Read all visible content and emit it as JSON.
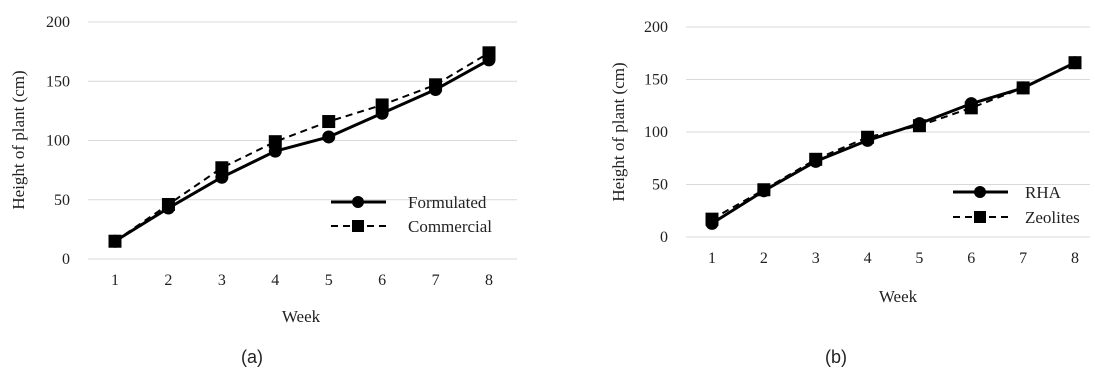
{
  "chart_data": [
    {
      "type": "line",
      "caption": "(a)",
      "xlabel": "Week",
      "ylabel": "Height of plant (cm)",
      "x": [
        1,
        2,
        3,
        4,
        5,
        6,
        7,
        8
      ],
      "xticks": [
        "1",
        "2",
        "3",
        "4",
        "5",
        "6",
        "7",
        "8"
      ],
      "ylim": [
        0,
        200
      ],
      "yticks": [
        "0",
        "50",
        "100",
        "150",
        "200"
      ],
      "grid": "horizontal",
      "legend_position": "bottom-right",
      "series": [
        {
          "name": "Formulated",
          "values": [
            15,
            43,
            69,
            91,
            103,
            123,
            143,
            168
          ],
          "marker": "circle",
          "line": "solid"
        },
        {
          "name": "Commercial",
          "values": [
            15,
            46,
            77,
            99,
            116,
            130,
            147,
            174
          ],
          "marker": "square",
          "line": "dashed"
        }
      ]
    },
    {
      "type": "line",
      "caption": "(b)",
      "xlabel": "Week",
      "ylabel": "Height of plant (cm)",
      "x": [
        1,
        2,
        3,
        4,
        5,
        6,
        7,
        8
      ],
      "xticks": [
        "1",
        "2",
        "3",
        "4",
        "5",
        "6",
        "7",
        "8"
      ],
      "ylim": [
        0,
        200
      ],
      "yticks": [
        "0",
        "50",
        "100",
        "150",
        "200"
      ],
      "grid": "horizontal",
      "legend_position": "bottom-right",
      "series": [
        {
          "name": "RHA",
          "values": [
            13,
            44,
            72,
            92,
            108,
            127,
            142,
            166
          ],
          "marker": "circle",
          "line": "solid"
        },
        {
          "name": "Zeolites",
          "values": [
            17,
            45,
            74,
            95,
            106,
            123,
            142,
            166
          ],
          "marker": "square",
          "line": "dashed"
        }
      ]
    }
  ]
}
